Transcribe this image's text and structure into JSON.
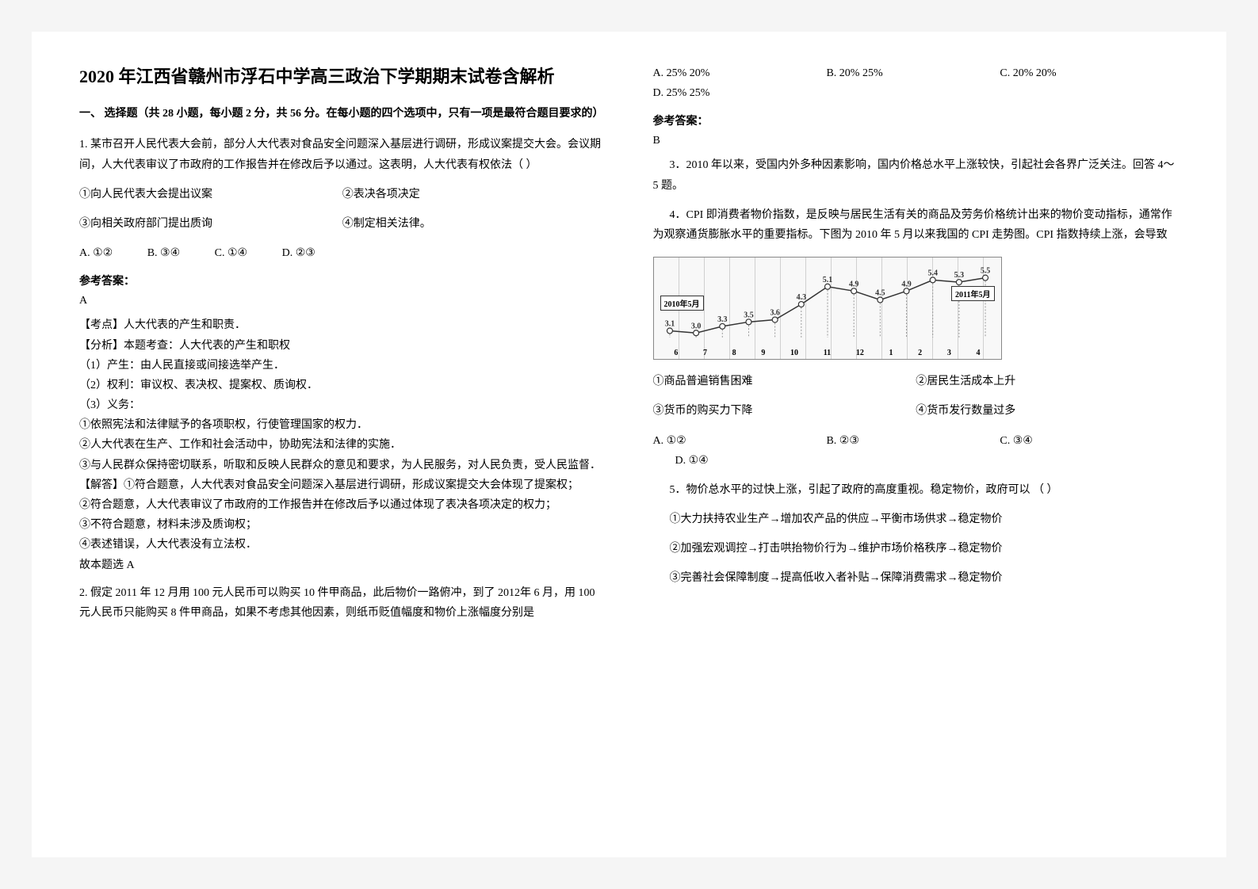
{
  "title": "2020 年江西省赣州市浮石中学高三政治下学期期末试卷含解析",
  "section1": "一、 选择题（共 28 小题，每小题 2 分，共 56 分。在每小题的四个选项中，只有一项是最符合题目要求的）",
  "q1": {
    "stem": "1. 某市召开人民代表大会前，部分人大代表对食品安全问题深入基层进行调研，形成议案提交大会。会议期间，人大代表审议了市政府的工作报告并在修改后予以通过。这表明，人大代表有权依法（      ）",
    "o1": "①向人民代表大会提出议案",
    "o2": "②表决各项决定",
    "o3": "③向相关政府部门提出质询",
    "o4": "④制定相关法律。",
    "a": "A.  ①②",
    "b": "B.  ③④",
    "c": "C.  ①④",
    "d": "D.  ②③",
    "ans_head": "参考答案：",
    "ans": "A",
    "e1": "【考点】人大代表的产生和职责．",
    "e2": "【分析】本题考查：人大代表的产生和职权",
    "e3": "（1）产生：由人民直接或间接选举产生．",
    "e4": "（2）权利：审议权、表决权、提案权、质询权．",
    "e5": "（3）义务：",
    "e6": "①依照宪法和法律赋予的各项职权，行使管理国家的权力．",
    "e7": "②人大代表在生产、工作和社会活动中，协助宪法和法律的实施．",
    "e8": "③与人民群众保持密切联系，听取和反映人民群众的意见和要求，为人民服务，对人民负责，受人民监督．",
    "e9": "【解答】①符合题意，人大代表对食品安全问题深入基层进行调研，形成议案提交大会体现了提案权；",
    "e10": "②符合题意，人大代表审议了市政府的工作报告并在修改后予以通过体现了表决各项决定的权力；",
    "e11": "③不符合题意，材料未涉及质询权；",
    "e12": "④表述错误，人大代表没有立法权．",
    "e13": "故本题选 A"
  },
  "q2": {
    "stem": "2. 假定 2011 年 12 月用 100 元人民币可以购买 10 件甲商品，此后物价一路俯冲，到了 2012年 6 月，用 100 元人民币只能购买 8 件甲商品，如果不考虑其他因素，则纸币贬值幅度和物价上涨幅度分别是",
    "a": "A. 25%    20%",
    "b": "B. 20%    25%",
    "c": "C. 20%       20%",
    "d": "D. 25%         25%",
    "ans_head": "参考答案：",
    "ans": "B"
  },
  "q3": {
    "stem": "3．2010 年以来，受国内外多种因素影响，国内价格总水平上涨较快，引起社会各界广泛关注。回答 4～5 题。"
  },
  "q4": {
    "stem": "4．CPI 即消费者物价指数，是反映与居民生活有关的商品及劳务价格统计出来的物价变动指标，通常作为观察通货膨胀水平的重要指标。下图为 2010 年 5 月以来我国的 CPI 走势图。CPI 指数持续上涨，会导致",
    "chart": {
      "type": "line",
      "x_labels": [
        "6",
        "7",
        "8",
        "9",
        "10",
        "11",
        "12",
        "1",
        "2",
        "3",
        "4"
      ],
      "left_year": "2010年5月",
      "right_year": "2011年5月",
      "values": [
        3.1,
        3.0,
        3.3,
        3.5,
        3.6,
        4.3,
        5.1,
        4.9,
        4.5,
        4.9,
        5.4,
        5.3,
        5.5
      ],
      "ylim": [
        2.8,
        5.8
      ],
      "line_color": "#333333",
      "marker": "circle",
      "marker_bg": "#ffffff",
      "marker_stroke": "#333333",
      "background_color": "#f8f8f8",
      "grid_color": "#d0d0d0",
      "label_font_size": 10
    },
    "o1": "①商品普遍销售困难",
    "o2": "②居民生活成本上升",
    "o3": "③货币的购买力下降",
    "o4": "④货币发行数量过多",
    "a": "A.  ①②",
    "b": "B.  ②③",
    "c": "C.  ③④",
    "d": "D.  ①④"
  },
  "q5": {
    "stem": "5．物价总水平的过快上涨，引起了政府的高度重视。稳定物价，政府可以             （         ）",
    "o1": "①大力扶持农业生产→增加农产品的供应→平衡市场供求→稳定物价",
    "o2": "②加强宏观调控→打击哄抬物价行为→维护市场价格秩序→稳定物价",
    "o3": "③完善社会保障制度→提高低收入者补贴→保障消费需求→稳定物价"
  }
}
